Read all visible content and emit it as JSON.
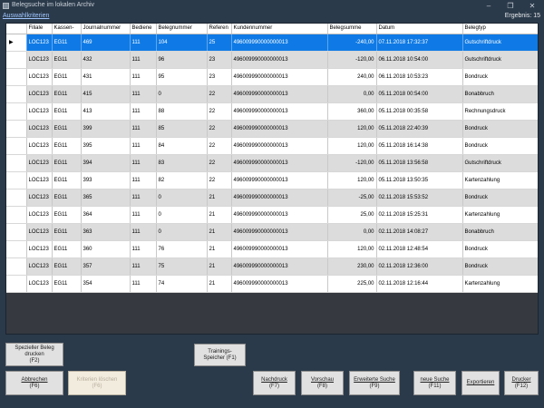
{
  "window": {
    "title": "Belegsuche im lokalen Archiv",
    "minimize": "–",
    "restore": "❐",
    "close": "✕"
  },
  "filterbar": {
    "criteria_link": "Auswahlkriterien",
    "result_count": "Ergebnis: 15"
  },
  "table": {
    "columns": [
      "",
      "Filiale",
      "Kassen-",
      "Journalnummer",
      "Bediene",
      "Belegnummer",
      "Referen",
      "Kundennummer",
      "Belegsumme",
      "Datum",
      "Belegtyp"
    ],
    "selected_indicator": "▶",
    "rows": [
      [
        "LOC123",
        "EG11",
        "469",
        "111",
        "104",
        "25",
        "496009990000000013",
        "-240,00",
        "07.11.2018 17:32:37",
        "Gutschriftdruck"
      ],
      [
        "LOC123",
        "EG11",
        "432",
        "111",
        "96",
        "23",
        "496009990000000013",
        "-120,00",
        "06.11.2018 10:54:00",
        "Gutschriftdruck"
      ],
      [
        "LOC123",
        "EG11",
        "431",
        "111",
        "95",
        "23",
        "496009990000000013",
        "240,00",
        "06.11.2018 10:53:23",
        "Bondruck"
      ],
      [
        "LOC123",
        "EG11",
        "415",
        "111",
        "0",
        "22",
        "496009990000000013",
        "0,00",
        "05.11.2018 00:54:00",
        "Bonabbruch"
      ],
      [
        "LOC123",
        "EG11",
        "413",
        "111",
        "88",
        "22",
        "496009990000000013",
        "360,00",
        "05.11.2018 00:35:58",
        "Rechnungsdruck"
      ],
      [
        "LOC123",
        "EG11",
        "399",
        "111",
        "85",
        "22",
        "496009990000000013",
        "120,00",
        "05.11.2018 22:40:39",
        "Bondruck"
      ],
      [
        "LOC123",
        "EG11",
        "395",
        "111",
        "84",
        "22",
        "496009990000000013",
        "120,00",
        "05.11.2018 16:14:38",
        "Bondruck"
      ],
      [
        "LOC123",
        "EG11",
        "394",
        "111",
        "83",
        "22",
        "496009990000000013",
        "-120,00",
        "05.11.2018 13:56:58",
        "Gutschriftdruck"
      ],
      [
        "LOC123",
        "EG11",
        "393",
        "111",
        "82",
        "22",
        "496009990000000013",
        "120,00",
        "05.11.2018 13:50:35",
        "Kartenzahlung"
      ],
      [
        "LOC123",
        "EG11",
        "365",
        "111",
        "0",
        "21",
        "496009990000000013",
        "-25,00",
        "02.11.2018 15:53:52",
        "Bondruck"
      ],
      [
        "LOC123",
        "EG11",
        "364",
        "111",
        "0",
        "21",
        "496009990000000013",
        "25,00",
        "02.11.2018 15:25:31",
        "Kartenzahlung"
      ],
      [
        "LOC123",
        "EG11",
        "363",
        "111",
        "0",
        "21",
        "496009990000000013",
        "0,00",
        "02.11.2018 14:08:27",
        "Bonabbruch"
      ],
      [
        "LOC123",
        "EG11",
        "360",
        "111",
        "76",
        "21",
        "496009990000000013",
        "120,00",
        "02.11.2018 12:48:54",
        "Bondruck"
      ],
      [
        "LOC123",
        "EG11",
        "357",
        "111",
        "75",
        "21",
        "496009990000000013",
        "230,00",
        "02.11.2018 12:36:00",
        "Bondruck"
      ],
      [
        "LOC123",
        "EG11",
        "354",
        "111",
        "74",
        "21",
        "496009990000000013",
        "225,00",
        "02.11.2018 12:16:44",
        "Kartenzahlung"
      ]
    ]
  },
  "buttons": {
    "special_print_l1": "Spezieller Beleg",
    "special_print_l2": "drucken",
    "special_print_key": "(F2)",
    "training_l1": "Trainings-",
    "training_l2": "Speicher (F1)",
    "cancel": "Abbrechen",
    "cancel_key": "(F6)",
    "clear_l1": "Kriterien löschen",
    "clear_key": "(F6)",
    "reprint": "Nachdruck",
    "reprint_key": "(F7)",
    "preview": "Vorschau",
    "preview_key": "(F8)",
    "extended_search": "Erweiterte Suche",
    "extended_search_key": "(F9)",
    "new_search": "neue Suche",
    "new_search_key": "(F11)",
    "export": "Exportieren",
    "printer": "Drucker",
    "printer_key": "(F12)"
  }
}
